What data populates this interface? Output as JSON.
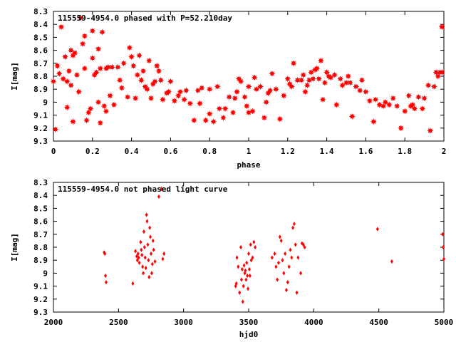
{
  "colors": {
    "points": "#ff0000",
    "frame": "#000000",
    "background": "#ffffff"
  },
  "chart_data": [
    {
      "type": "scatter",
      "title": "115559-4954.0 phased with P=52.210day",
      "xlabel": "phase",
      "ylabel": "I[mag]",
      "xlim": [
        0,
        2
      ],
      "ylim": [
        9.3,
        8.3
      ],
      "y_inverted": true,
      "grid": false,
      "x_ticks": [
        "0",
        "0.2",
        "0.4",
        "0.6",
        "0.8",
        "1",
        "1.2",
        "1.4",
        "1.6",
        "1.8",
        "2"
      ],
      "y_ticks": [
        "8.3",
        "8.4",
        "8.5",
        "8.6",
        "8.7",
        "8.8",
        "8.9",
        "9",
        "9.1",
        "9.2",
        "9.3"
      ],
      "marker": "star",
      "points": [
        [
          0.0,
          8.84
        ],
        [
          0.01,
          9.21
        ],
        [
          0.02,
          8.72
        ],
        [
          0.03,
          8.78
        ],
        [
          0.04,
          8.42
        ],
        [
          0.05,
          8.82
        ],
        [
          0.06,
          8.65
        ],
        [
          0.07,
          8.84
        ],
        [
          0.07,
          9.04
        ],
        [
          0.08,
          8.76
        ],
        [
          0.09,
          8.6
        ],
        [
          0.09,
          8.87
        ],
        [
          0.1,
          9.15
        ],
        [
          0.1,
          8.64
        ],
        [
          0.11,
          8.62
        ],
        [
          0.12,
          8.79
        ],
        [
          0.13,
          8.92
        ],
        [
          0.14,
          8.35
        ],
        [
          0.15,
          8.55
        ],
        [
          0.16,
          8.49
        ],
        [
          0.16,
          8.74
        ],
        [
          0.17,
          9.14
        ],
        [
          0.18,
          9.08
        ],
        [
          0.19,
          9.05
        ],
        [
          0.2,
          8.45
        ],
        [
          0.2,
          8.66
        ],
        [
          0.21,
          8.79
        ],
        [
          0.22,
          8.77
        ],
        [
          0.23,
          9.0
        ],
        [
          0.23,
          8.59
        ],
        [
          0.24,
          8.74
        ],
        [
          0.24,
          9.16
        ],
        [
          0.25,
          8.46
        ],
        [
          0.26,
          9.03
        ],
        [
          0.27,
          8.74
        ],
        [
          0.27,
          9.07
        ],
        [
          0.28,
          8.73
        ],
        [
          0.29,
          8.95
        ],
        [
          0.3,
          8.73
        ],
        [
          0.31,
          9.02
        ],
        [
          0.33,
          8.73
        ],
        [
          0.34,
          8.83
        ],
        [
          0.35,
          8.89
        ],
        [
          0.36,
          8.7
        ],
        [
          0.38,
          8.96
        ],
        [
          0.39,
          8.58
        ],
        [
          0.4,
          8.65
        ],
        [
          0.41,
          8.72
        ],
        [
          0.42,
          8.97
        ],
        [
          0.43,
          8.79
        ],
        [
          0.44,
          8.64
        ],
        [
          0.45,
          8.83
        ],
        [
          0.46,
          8.76
        ],
        [
          0.47,
          8.88
        ],
        [
          0.48,
          8.9
        ],
        [
          0.49,
          8.68
        ],
        [
          0.5,
          8.97
        ],
        [
          0.51,
          8.86
        ],
        [
          0.52,
          8.84
        ],
        [
          0.53,
          8.72
        ],
        [
          0.54,
          8.76
        ],
        [
          0.55,
          8.83
        ],
        [
          0.56,
          8.98
        ],
        [
          0.58,
          8.93
        ],
        [
          0.59,
          8.92
        ],
        [
          0.6,
          8.84
        ],
        [
          0.62,
          8.99
        ],
        [
          0.64,
          8.95
        ],
        [
          0.65,
          8.92
        ],
        [
          0.67,
          8.98
        ],
        [
          0.68,
          8.91
        ],
        [
          0.7,
          9.01
        ],
        [
          0.72,
          9.14
        ],
        [
          0.74,
          8.91
        ],
        [
          0.75,
          9.01
        ],
        [
          0.76,
          8.89
        ],
        [
          0.78,
          9.14
        ],
        [
          0.8,
          9.09
        ],
        [
          0.8,
          8.9
        ],
        [
          0.82,
          9.15
        ],
        [
          0.84,
          8.88
        ],
        [
          0.85,
          9.05
        ],
        [
          0.87,
          9.12
        ],
        [
          0.88,
          9.05
        ],
        [
          0.9,
          8.96
        ],
        [
          0.92,
          9.08
        ],
        [
          0.93,
          8.97
        ],
        [
          0.94,
          8.92
        ],
        [
          0.95,
          8.82
        ],
        [
          0.96,
          8.84
        ],
        [
          0.98,
          8.96
        ],
        [
          0.99,
          9.03
        ],
        [
          1.0,
          8.88
        ],
        [
          1.0,
          9.08
        ],
        [
          1.02,
          9.07
        ],
        [
          1.03,
          8.81
        ],
        [
          1.04,
          8.9
        ],
        [
          1.06,
          8.88
        ],
        [
          1.08,
          9.12
        ],
        [
          1.09,
          9.0
        ],
        [
          1.1,
          8.93
        ],
        [
          1.11,
          8.91
        ],
        [
          1.12,
          8.78
        ],
        [
          1.14,
          8.9
        ],
        [
          1.16,
          9.13
        ],
        [
          1.18,
          8.95
        ],
        [
          1.2,
          8.82
        ],
        [
          1.21,
          8.86
        ],
        [
          1.22,
          8.88
        ],
        [
          1.23,
          8.7
        ],
        [
          1.25,
          8.83
        ],
        [
          1.27,
          8.83
        ],
        [
          1.28,
          8.79
        ],
        [
          1.29,
          8.92
        ],
        [
          1.3,
          8.87
        ],
        [
          1.31,
          8.83
        ],
        [
          1.32,
          8.77
        ],
        [
          1.33,
          8.82
        ],
        [
          1.34,
          8.75
        ],
        [
          1.35,
          8.74
        ],
        [
          1.36,
          8.82
        ],
        [
          1.37,
          8.68
        ],
        [
          1.38,
          8.98
        ],
        [
          1.39,
          8.85
        ],
        [
          1.4,
          8.77
        ],
        [
          1.41,
          8.8
        ],
        [
          1.42,
          8.81
        ],
        [
          1.44,
          8.79
        ],
        [
          1.45,
          9.02
        ],
        [
          1.47,
          8.82
        ],
        [
          1.48,
          8.87
        ],
        [
          1.5,
          8.85
        ],
        [
          1.51,
          8.8
        ],
        [
          1.52,
          8.85
        ],
        [
          1.53,
          9.11
        ],
        [
          1.55,
          8.88
        ],
        [
          1.57,
          8.91
        ],
        [
          1.58,
          8.83
        ],
        [
          1.6,
          8.92
        ],
        [
          1.62,
          8.99
        ],
        [
          1.64,
          9.15
        ],
        [
          1.65,
          8.98
        ],
        [
          1.67,
          9.02
        ],
        [
          1.69,
          9.03
        ],
        [
          1.7,
          9.0
        ],
        [
          1.72,
          9.02
        ],
        [
          1.74,
          8.97
        ],
        [
          1.76,
          9.03
        ],
        [
          1.78,
          9.2
        ],
        [
          1.8,
          9.07
        ],
        [
          1.82,
          8.95
        ],
        [
          1.83,
          9.03
        ],
        [
          1.84,
          9.02
        ],
        [
          1.85,
          9.05
        ],
        [
          1.87,
          8.96
        ],
        [
          1.89,
          9.05
        ],
        [
          1.9,
          8.97
        ],
        [
          1.92,
          8.87
        ],
        [
          1.93,
          9.22
        ],
        [
          1.95,
          8.88
        ],
        [
          1.96,
          8.77
        ],
        [
          1.97,
          8.8
        ],
        [
          1.98,
          8.77
        ],
        [
          1.99,
          8.42
        ],
        [
          1.99,
          8.77
        ]
      ]
    },
    {
      "type": "scatter",
      "title": "115559-4954.0 not phased light curve",
      "xlabel": "hjd0",
      "ylabel": "I[mag]",
      "xlim": [
        2000,
        5000
      ],
      "ylim": [
        9.3,
        8.3
      ],
      "y_inverted": true,
      "grid": false,
      "x_ticks": [
        "2000",
        "2500",
        "3000",
        "3500",
        "4000",
        "4500",
        "5000"
      ],
      "y_ticks": [
        "8.3",
        "8.4",
        "8.5",
        "8.6",
        "8.7",
        "8.8",
        "8.9",
        "9",
        "9.1",
        "9.2",
        "9.3"
      ],
      "marker": "diamond",
      "points": [
        [
          2390,
          8.84
        ],
        [
          2395,
          8.85
        ],
        [
          2400,
          9.02
        ],
        [
          2405,
          9.07
        ],
        [
          2610,
          9.08
        ],
        [
          2630,
          8.83
        ],
        [
          2640,
          8.87
        ],
        [
          2645,
          8.9
        ],
        [
          2650,
          8.85
        ],
        [
          2655,
          8.88
        ],
        [
          2660,
          8.92
        ],
        [
          2670,
          8.76
        ],
        [
          2675,
          8.82
        ],
        [
          2680,
          8.86
        ],
        [
          2685,
          8.95
        ],
        [
          2690,
          9.0
        ],
        [
          2695,
          8.68
        ],
        [
          2700,
          8.8
        ],
        [
          2705,
          8.88
        ],
        [
          2710,
          8.96
        ],
        [
          2715,
          8.55
        ],
        [
          2720,
          8.6
        ],
        [
          2725,
          8.78
        ],
        [
          2730,
          8.9
        ],
        [
          2735,
          9.03
        ],
        [
          2740,
          8.65
        ],
        [
          2745,
          8.72
        ],
        [
          2750,
          8.85
        ],
        [
          2755,
          9.0
        ],
        [
          2760,
          8.93
        ],
        [
          2765,
          8.75
        ],
        [
          2770,
          8.82
        ],
        [
          2780,
          8.91
        ],
        [
          2810,
          8.41
        ],
        [
          2830,
          8.35
        ],
        [
          2840,
          8.89
        ],
        [
          2850,
          8.85
        ],
        [
          3400,
          9.1
        ],
        [
          3405,
          9.08
        ],
        [
          3410,
          8.88
        ],
        [
          3420,
          8.95
        ],
        [
          3430,
          9.15
        ],
        [
          3440,
          8.8
        ],
        [
          3445,
          9.05
        ],
        [
          3450,
          8.97
        ],
        [
          3455,
          9.22
        ],
        [
          3460,
          9.1
        ],
        [
          3465,
          8.94
        ],
        [
          3470,
          9.0
        ],
        [
          3475,
          8.98
        ],
        [
          3480,
          9.05
        ],
        [
          3485,
          8.92
        ],
        [
          3490,
          9.02
        ],
        [
          3495,
          9.12
        ],
        [
          3500,
          8.85
        ],
        [
          3505,
          8.97
        ],
        [
          3510,
          9.02
        ],
        [
          3515,
          8.78
        ],
        [
          3520,
          8.9
        ],
        [
          3530,
          8.88
        ],
        [
          3540,
          8.76
        ],
        [
          3550,
          8.8
        ],
        [
          3680,
          8.88
        ],
        [
          3700,
          8.85
        ],
        [
          3710,
          8.95
        ],
        [
          3720,
          9.05
        ],
        [
          3730,
          8.92
        ],
        [
          3740,
          8.72
        ],
        [
          3750,
          8.75
        ],
        [
          3760,
          8.9
        ],
        [
          3770,
          9.0
        ],
        [
          3780,
          8.85
        ],
        [
          3790,
          9.13
        ],
        [
          3800,
          9.07
        ],
        [
          3810,
          8.95
        ],
        [
          3820,
          8.82
        ],
        [
          3830,
          8.88
        ],
        [
          3840,
          8.65
        ],
        [
          3850,
          8.62
        ],
        [
          3860,
          8.78
        ],
        [
          3870,
          9.15
        ],
        [
          3880,
          8.88
        ],
        [
          3900,
          9.0
        ],
        [
          3910,
          8.77
        ],
        [
          3920,
          8.78
        ],
        [
          3930,
          8.8
        ],
        [
          4490,
          8.66
        ],
        [
          4600,
          8.91
        ],
        [
          4990,
          8.7
        ],
        [
          4995,
          8.8
        ],
        [
          5000,
          8.89
        ]
      ]
    }
  ]
}
